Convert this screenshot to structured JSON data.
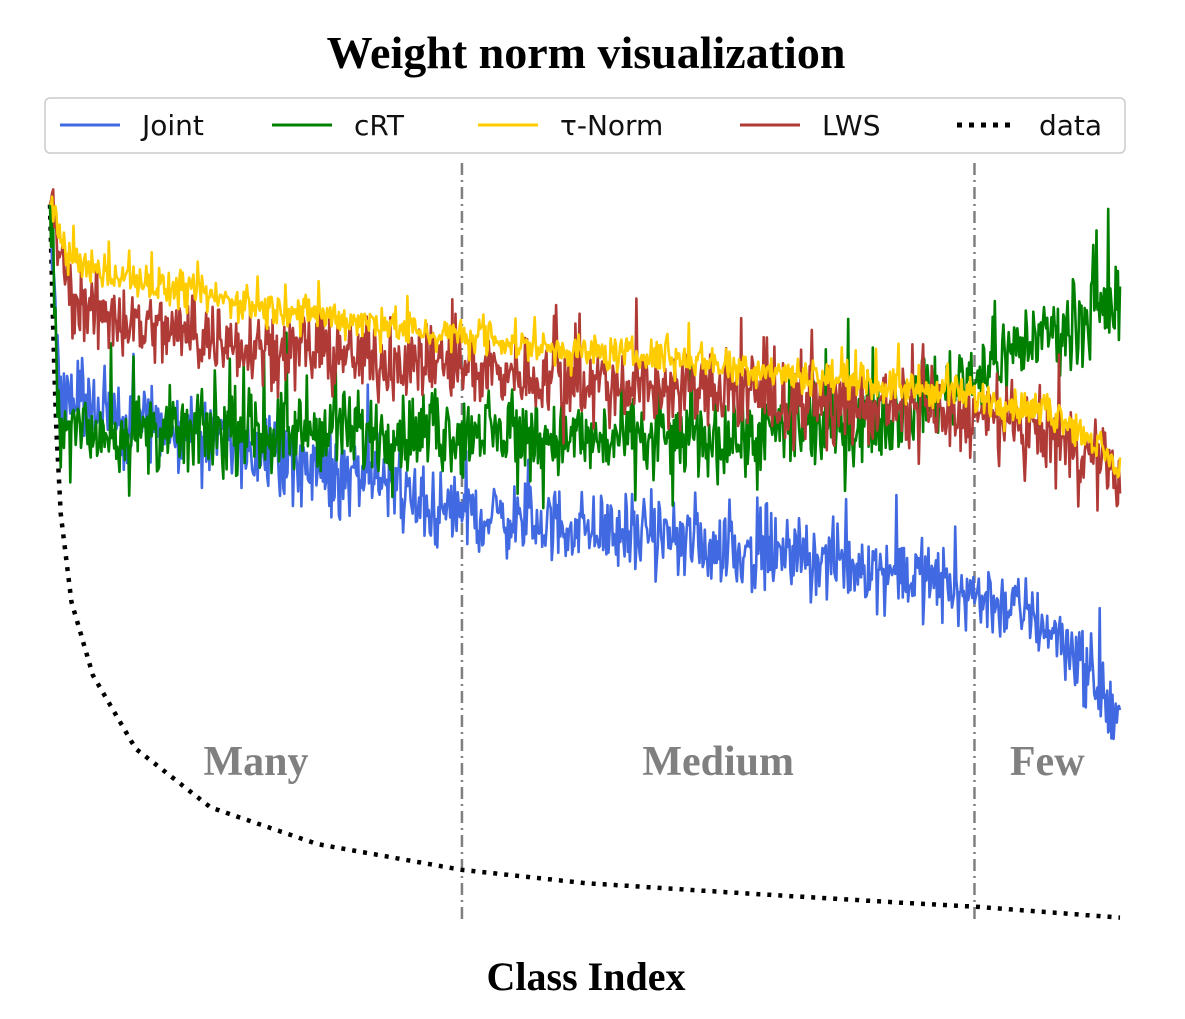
{
  "chart_data": {
    "type": "line",
    "title": "Weight norm visualization",
    "xlabel": "Class Index",
    "ylabel": "",
    "x_range": [
      0,
      1000
    ],
    "y_range": [
      0,
      1
    ],
    "grid": false,
    "legend": {
      "placement": "top",
      "entries": [
        "Joint",
        "cRT",
        "τ-Norm",
        "LWS",
        "data"
      ]
    },
    "regions": [
      {
        "label": "Many",
        "start": 0,
        "end": 385
      },
      {
        "label": "Medium",
        "start": 385,
        "end": 864
      },
      {
        "label": "Few",
        "start": 864,
        "end": 1000
      }
    ],
    "boundaries": [
      385,
      864
    ],
    "boundary_color": "#808080",
    "series": [
      {
        "name": "Joint",
        "color": "#4169e1",
        "style": "solid",
        "trend": [
          [
            0,
            0.98
          ],
          [
            10,
            0.72
          ],
          [
            50,
            0.7
          ],
          [
            100,
            0.68
          ],
          [
            200,
            0.64
          ],
          [
            300,
            0.6
          ],
          [
            385,
            0.56
          ],
          [
            500,
            0.54
          ],
          [
            600,
            0.52
          ],
          [
            700,
            0.5
          ],
          [
            800,
            0.48
          ],
          [
            864,
            0.45
          ],
          [
            920,
            0.42
          ],
          [
            960,
            0.37
          ],
          [
            1000,
            0.27
          ]
        ],
        "noise": 0.075
      },
      {
        "name": "cRT",
        "color": "#008000",
        "style": "solid",
        "trend": [
          [
            0,
            0.98
          ],
          [
            10,
            0.67
          ],
          [
            100,
            0.67
          ],
          [
            200,
            0.67
          ],
          [
            300,
            0.67
          ],
          [
            400,
            0.67
          ],
          [
            500,
            0.66
          ],
          [
            600,
            0.66
          ],
          [
            700,
            0.67
          ],
          [
            800,
            0.7
          ],
          [
            864,
            0.75
          ],
          [
            920,
            0.8
          ],
          [
            1000,
            0.84
          ]
        ],
        "noise": 0.08
      },
      {
        "name": "τ-Norm",
        "color": "#ffcc00",
        "style": "solid",
        "trend": [
          [
            0,
            0.98
          ],
          [
            20,
            0.9
          ],
          [
            100,
            0.87
          ],
          [
            200,
            0.84
          ],
          [
            300,
            0.82
          ],
          [
            385,
            0.8
          ],
          [
            500,
            0.78
          ],
          [
            600,
            0.77
          ],
          [
            700,
            0.75
          ],
          [
            800,
            0.73
          ],
          [
            864,
            0.72
          ],
          [
            950,
            0.69
          ],
          [
            1000,
            0.62
          ]
        ],
        "noise": 0.035
      },
      {
        "name": "LWS",
        "color": "#b03a36",
        "style": "solid",
        "trend": [
          [
            0,
            0.98
          ],
          [
            20,
            0.85
          ],
          [
            100,
            0.81
          ],
          [
            200,
            0.79
          ],
          [
            300,
            0.77
          ],
          [
            385,
            0.76
          ],
          [
            500,
            0.74
          ],
          [
            600,
            0.73
          ],
          [
            700,
            0.71
          ],
          [
            800,
            0.7
          ],
          [
            864,
            0.69
          ],
          [
            950,
            0.66
          ],
          [
            1000,
            0.61
          ]
        ],
        "noise": 0.075
      },
      {
        "name": "data",
        "color": "#000000",
        "style": "dotted",
        "points": [
          [
            0,
            0.98
          ],
          [
            5,
            0.7
          ],
          [
            10,
            0.56
          ],
          [
            20,
            0.44
          ],
          [
            40,
            0.34
          ],
          [
            80,
            0.24
          ],
          [
            150,
            0.16
          ],
          [
            250,
            0.11
          ],
          [
            385,
            0.075
          ],
          [
            500,
            0.057
          ],
          [
            650,
            0.043
          ],
          [
            800,
            0.03
          ],
          [
            864,
            0.025
          ],
          [
            1000,
            0.01
          ]
        ]
      }
    ]
  }
}
